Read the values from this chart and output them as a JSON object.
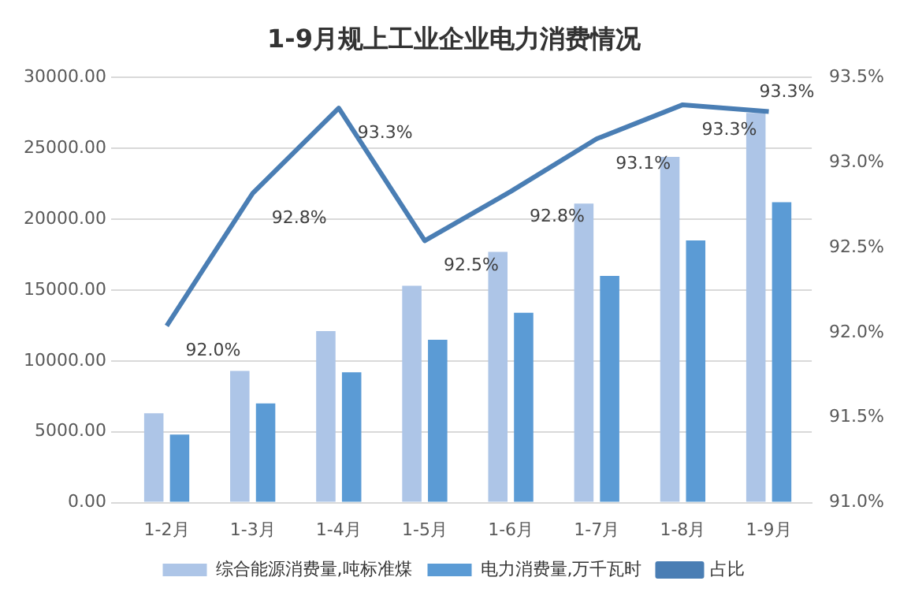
{
  "chart_data": {
    "type": "bar",
    "title": "1-9月规上工业企业电力消费情况",
    "categories": [
      "1-2月",
      "1-3月",
      "1-4月",
      "1-5月",
      "1-6月",
      "1-7月",
      "1-8月",
      "1-9月"
    ],
    "series": [
      {
        "name": "综合能源消费量,吨标准煤",
        "color": "#adc5e7",
        "values": [
          6300,
          9300,
          12100,
          15300,
          17700,
          21100,
          24400,
          27500
        ]
      },
      {
        "name": "电力消费量,万千瓦时",
        "color": "#5b9bd5",
        "values": [
          4800,
          7000,
          9200,
          11500,
          13400,
          16000,
          18500,
          21200
        ]
      },
      {
        "name": "占比",
        "type": "line",
        "axis": "y2",
        "color": "#4a7eb4",
        "values": [
          92.04,
          92.82,
          93.32,
          92.54,
          92.83,
          93.14,
          93.34,
          93.3
        ],
        "value_labels": [
          "92.0%",
          "92.8%",
          "93.3%",
          "92.5%",
          "92.8%",
          "93.1%",
          "93.3%",
          "93.3%"
        ]
      }
    ],
    "ylim": [
      0,
      30000
    ],
    "yticks": [
      {
        "value": 0,
        "label": "0.00"
      },
      {
        "value": 5000,
        "label": "5000.00"
      },
      {
        "value": 10000,
        "label": "10000.00"
      },
      {
        "value": 15000,
        "label": "15000.00"
      },
      {
        "value": 20000,
        "label": "20000.00"
      },
      {
        "value": 25000,
        "label": "25000.00"
      },
      {
        "value": 30000,
        "label": "30000.00"
      }
    ],
    "y2lim": [
      91,
      93.5
    ],
    "y2ticks": [
      {
        "value": 91,
        "label": "91.0%"
      },
      {
        "value": 91.5,
        "label": "91.5%"
      },
      {
        "value": 92,
        "label": "92.0%"
      },
      {
        "value": 92.5,
        "label": "92.5%"
      },
      {
        "value": 93,
        "label": "93.0%"
      },
      {
        "value": 93.5,
        "label": "93.5%"
      }
    ],
    "grid": "y",
    "legend": "bottom",
    "marker": "none"
  }
}
